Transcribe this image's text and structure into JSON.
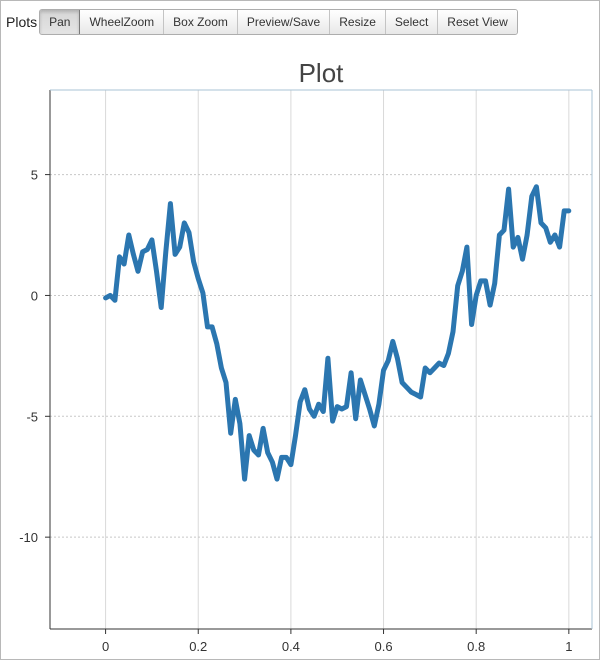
{
  "toolbar": {
    "label": "Plots",
    "buttons": [
      "Pan",
      "WheelZoom",
      "Box Zoom",
      "Preview/Save",
      "Resize",
      "Select",
      "Reset View"
    ],
    "active": "Pan"
  },
  "chart_data": {
    "type": "line",
    "title": "Plot",
    "xlabel": "",
    "ylabel": "",
    "xlim": [
      -0.12,
      1.05
    ],
    "ylim": [
      -13.8,
      8.5
    ],
    "xticks": [
      0,
      0.2,
      0.4,
      0.6,
      0.8,
      1
    ],
    "xtick_labels": [
      "0",
      "0.2",
      "0.4",
      "0.6",
      "0.8",
      "1"
    ],
    "yticks": [
      5,
      0,
      -5,
      -10
    ],
    "ytick_labels": [
      "5",
      "0",
      "-5",
      "-10"
    ],
    "grid": true,
    "line_color": "#2b76b0",
    "series": [
      {
        "x": [
          0,
          0.01,
          0.02,
          0.03,
          0.04,
          0.05,
          0.06,
          0.07,
          0.08,
          0.09,
          0.1,
          0.11,
          0.12,
          0.13,
          0.14,
          0.15,
          0.16,
          0.17,
          0.18,
          0.19,
          0.2,
          0.21,
          0.22,
          0.23,
          0.24,
          0.25,
          0.26,
          0.27,
          0.28,
          0.29,
          0.3,
          0.31,
          0.32,
          0.33,
          0.34,
          0.35,
          0.36,
          0.37,
          0.38,
          0.39,
          0.4,
          0.41,
          0.42,
          0.43,
          0.44,
          0.45,
          0.46,
          0.47,
          0.48,
          0.49,
          0.5,
          0.51,
          0.52,
          0.53,
          0.54,
          0.55,
          0.56,
          0.57,
          0.58,
          0.59,
          0.6,
          0.61,
          0.62,
          0.63,
          0.64,
          0.65,
          0.66,
          0.67,
          0.68,
          0.69,
          0.7,
          0.71,
          0.72,
          0.73,
          0.74,
          0.75,
          0.76,
          0.77,
          0.78,
          0.79,
          0.8,
          0.81,
          0.82,
          0.83,
          0.84,
          0.85,
          0.86,
          0.87,
          0.88,
          0.89,
          0.9,
          0.91,
          0.92,
          0.93,
          0.94,
          0.95,
          0.96,
          0.97,
          0.98,
          0.99,
          1.0
        ],
        "y": [
          -0.1,
          0.0,
          -0.2,
          1.6,
          1.3,
          2.5,
          1.7,
          1.0,
          1.8,
          1.9,
          2.3,
          1.0,
          -0.5,
          1.8,
          3.8,
          1.7,
          2.0,
          3.0,
          2.6,
          1.4,
          0.7,
          0.1,
          -1.3,
          -1.3,
          -2.0,
          -3.0,
          -3.6,
          -5.7,
          -4.3,
          -5.3,
          -7.6,
          -5.8,
          -6.4,
          -6.6,
          -5.5,
          -6.5,
          -6.9,
          -7.6,
          -6.7,
          -6.7,
          -7.0,
          -5.8,
          -4.4,
          -3.9,
          -4.7,
          -5.0,
          -4.5,
          -4.8,
          -2.6,
          -5.2,
          -4.6,
          -4.7,
          -4.6,
          -3.2,
          -5.1,
          -3.5,
          -4.1,
          -4.7,
          -5.4,
          -4.5,
          -3.1,
          -2.7,
          -1.9,
          -2.6,
          -3.6,
          -3.8,
          -4.0,
          -4.1,
          -4.2,
          -3.0,
          -3.2,
          -3.0,
          -2.8,
          -2.9,
          -2.4,
          -1.5,
          0.4,
          1.0,
          2.0,
          -1.2,
          0.0,
          0.6,
          0.6,
          -0.4,
          0.5,
          2.5,
          2.7,
          4.4,
          2.0,
          2.4,
          1.5,
          2.5,
          4.1,
          4.5,
          3.0,
          2.8,
          2.2,
          2.5,
          2.0,
          3.5,
          3.5
        ]
      }
    ]
  }
}
